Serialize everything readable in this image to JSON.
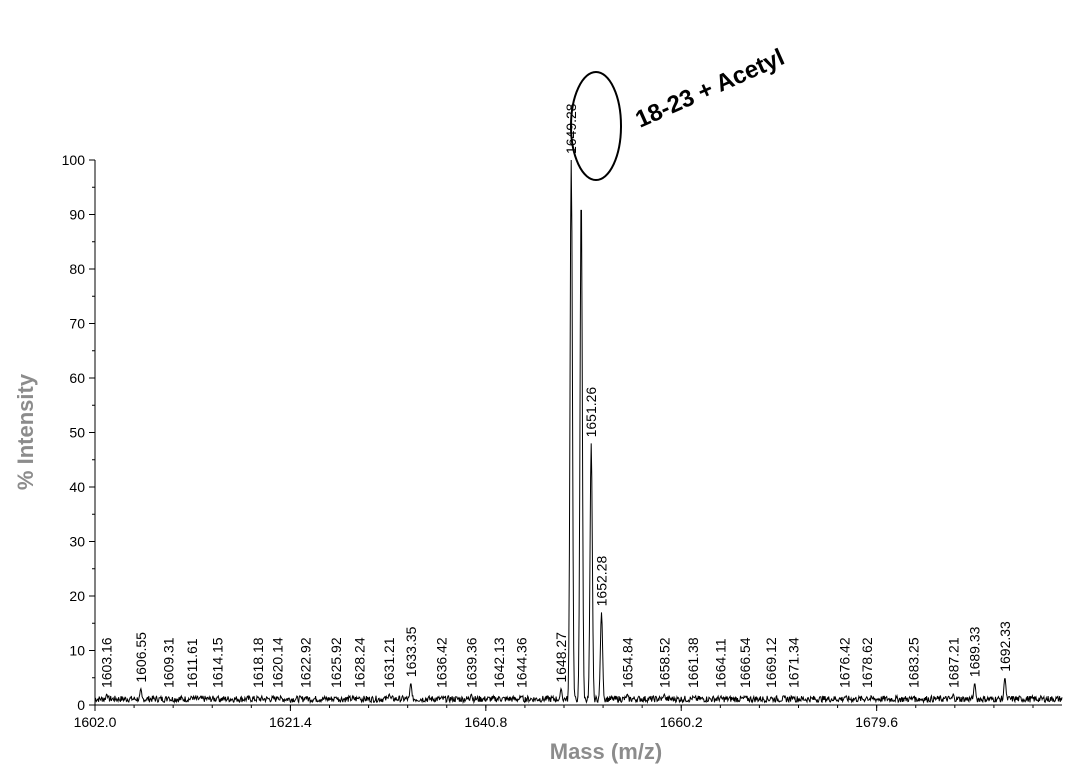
{
  "chart_data": {
    "type": "line",
    "title": "",
    "xlabel": "Mass (m/z)",
    "ylabel": "% Intensity",
    "xlim": [
      1602.0,
      1698.0
    ],
    "ylim": [
      0,
      100
    ],
    "x_ticks": [
      "1602.0",
      "1621.4",
      "1640.8",
      "1660.2",
      "1679.6"
    ],
    "y_ticks": [
      "0",
      "10",
      "20",
      "30",
      "40",
      "50",
      "60",
      "70",
      "80",
      "90",
      "100"
    ],
    "grid": false,
    "annotation": {
      "text": "18-23 + Acetyl",
      "circled_peak": "1649.28"
    },
    "peaks": [
      {
        "mz": 1603.16,
        "label": "1603.16",
        "intensity": 2
      },
      {
        "mz": 1606.55,
        "label": "1606.55",
        "intensity": 3
      },
      {
        "mz": 1609.31,
        "label": "1609.31",
        "intensity": 1.5
      },
      {
        "mz": 1611.61,
        "label": "1611.61",
        "intensity": 1.5
      },
      {
        "mz": 1614.15,
        "label": "1614.15",
        "intensity": 1.5
      },
      {
        "mz": 1618.18,
        "label": "1618.18",
        "intensity": 1.5
      },
      {
        "mz": 1620.14,
        "label": "1620.14",
        "intensity": 1.5
      },
      {
        "mz": 1622.92,
        "label": "1622.92",
        "intensity": 1.5
      },
      {
        "mz": 1625.92,
        "label": "1625.92",
        "intensity": 1.5
      },
      {
        "mz": 1628.24,
        "label": "1628.24",
        "intensity": 1.5
      },
      {
        "mz": 1631.21,
        "label": "1631.21",
        "intensity": 2
      },
      {
        "mz": 1633.35,
        "label": "1633.35",
        "intensity": 4
      },
      {
        "mz": 1636.42,
        "label": "1636.42",
        "intensity": 1.5
      },
      {
        "mz": 1639.36,
        "label": "1639.36",
        "intensity": 2
      },
      {
        "mz": 1642.13,
        "label": "1642.13",
        "intensity": 1.5
      },
      {
        "mz": 1644.36,
        "label": "1644.36",
        "intensity": 1.5
      },
      {
        "mz": 1648.27,
        "label": "1648.27",
        "intensity": 3
      },
      {
        "mz": 1649.28,
        "label": "1649.28",
        "intensity": 100
      },
      {
        "mz": 1650.27,
        "label": "",
        "intensity": 94
      },
      {
        "mz": 1651.26,
        "label": "1651.26",
        "intensity": 48
      },
      {
        "mz": 1652.28,
        "label": "1652.28",
        "intensity": 17
      },
      {
        "mz": 1654.84,
        "label": "1654.84",
        "intensity": 2
      },
      {
        "mz": 1658.52,
        "label": "1658.52",
        "intensity": 2
      },
      {
        "mz": 1661.38,
        "label": "1661.38",
        "intensity": 1.5
      },
      {
        "mz": 1664.11,
        "label": "1664.11",
        "intensity": 1.5
      },
      {
        "mz": 1666.54,
        "label": "1666.54",
        "intensity": 1.5
      },
      {
        "mz": 1669.12,
        "label": "1669.12",
        "intensity": 1.5
      },
      {
        "mz": 1671.34,
        "label": "1671.34",
        "intensity": 1.5
      },
      {
        "mz": 1676.42,
        "label": "1676.42",
        "intensity": 1.5
      },
      {
        "mz": 1678.62,
        "label": "1678.62",
        "intensity": 1.5
      },
      {
        "mz": 1683.25,
        "label": "1683.25",
        "intensity": 1.5
      },
      {
        "mz": 1687.21,
        "label": "1687.21",
        "intensity": 2
      },
      {
        "mz": 1689.33,
        "label": "1689.33",
        "intensity": 4
      },
      {
        "mz": 1692.33,
        "label": "1692.33",
        "intensity": 5
      }
    ]
  }
}
